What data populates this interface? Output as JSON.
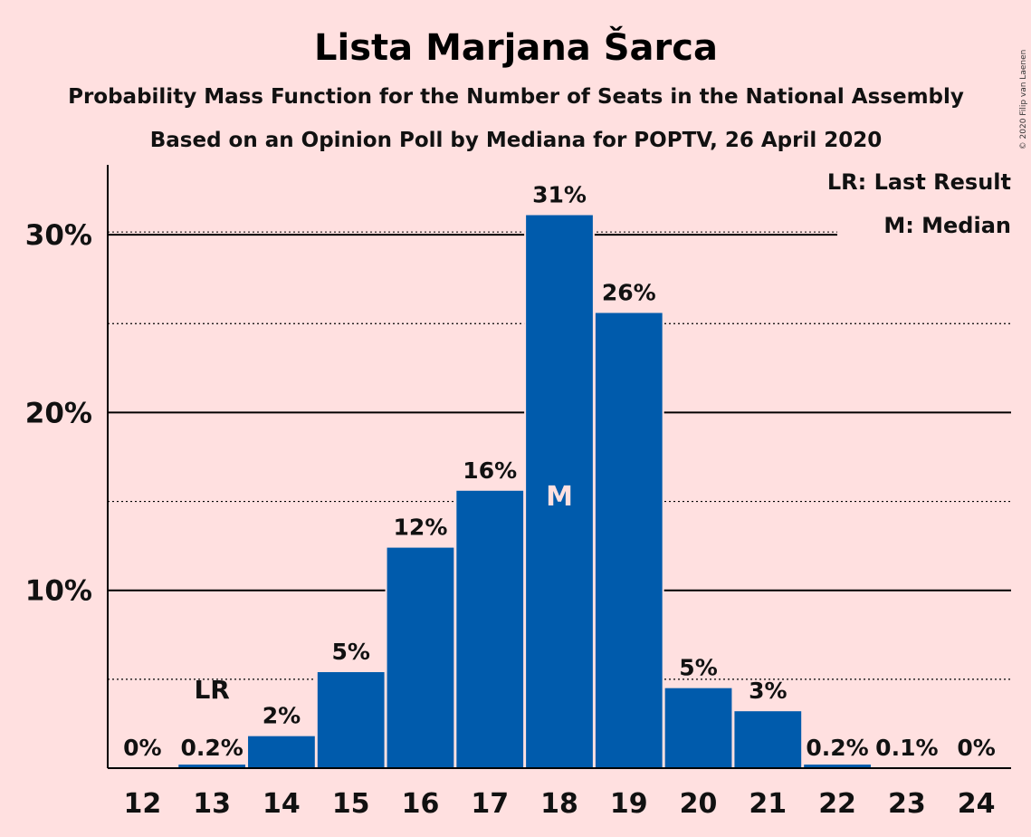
{
  "header": {
    "title": "Lista Marjana Šarca",
    "subtitle1": "Probability Mass Function for the Number of Seats in the National Assembly",
    "subtitle2": "Based on an Opinion Poll by Mediana for POPTV, 26 April 2020"
  },
  "legend": {
    "lr": "LR: Last Result",
    "m": "M: Median"
  },
  "copyright": "© 2020 Filip van Laenen",
  "colors": {
    "background": "#FFE0E0",
    "bar": "#005BAC"
  },
  "chart_data": {
    "type": "bar",
    "categories": [
      "12",
      "13",
      "14",
      "15",
      "16",
      "17",
      "18",
      "19",
      "20",
      "21",
      "22",
      "23",
      "24"
    ],
    "values": [
      0,
      0.2,
      1.8,
      5.4,
      12.4,
      15.6,
      31.1,
      25.6,
      4.5,
      3.2,
      0.2,
      0.05,
      0
    ],
    "data_labels": [
      "0%",
      "0.2%",
      "2%",
      "5%",
      "12%",
      "16%",
      "31%",
      "26%",
      "5%",
      "3%",
      "0.2%",
      "0.1%",
      "0%"
    ],
    "ylim": [
      0,
      34
    ],
    "yticks": [
      10,
      20,
      30
    ],
    "ytick_labels": [
      "10%",
      "20%",
      "30%"
    ],
    "minor_grid": [
      5,
      15,
      25
    ],
    "last_result": "13",
    "median": "18",
    "last_result_marker": "LR",
    "median_marker": "M",
    "legend_position": "top-right"
  }
}
